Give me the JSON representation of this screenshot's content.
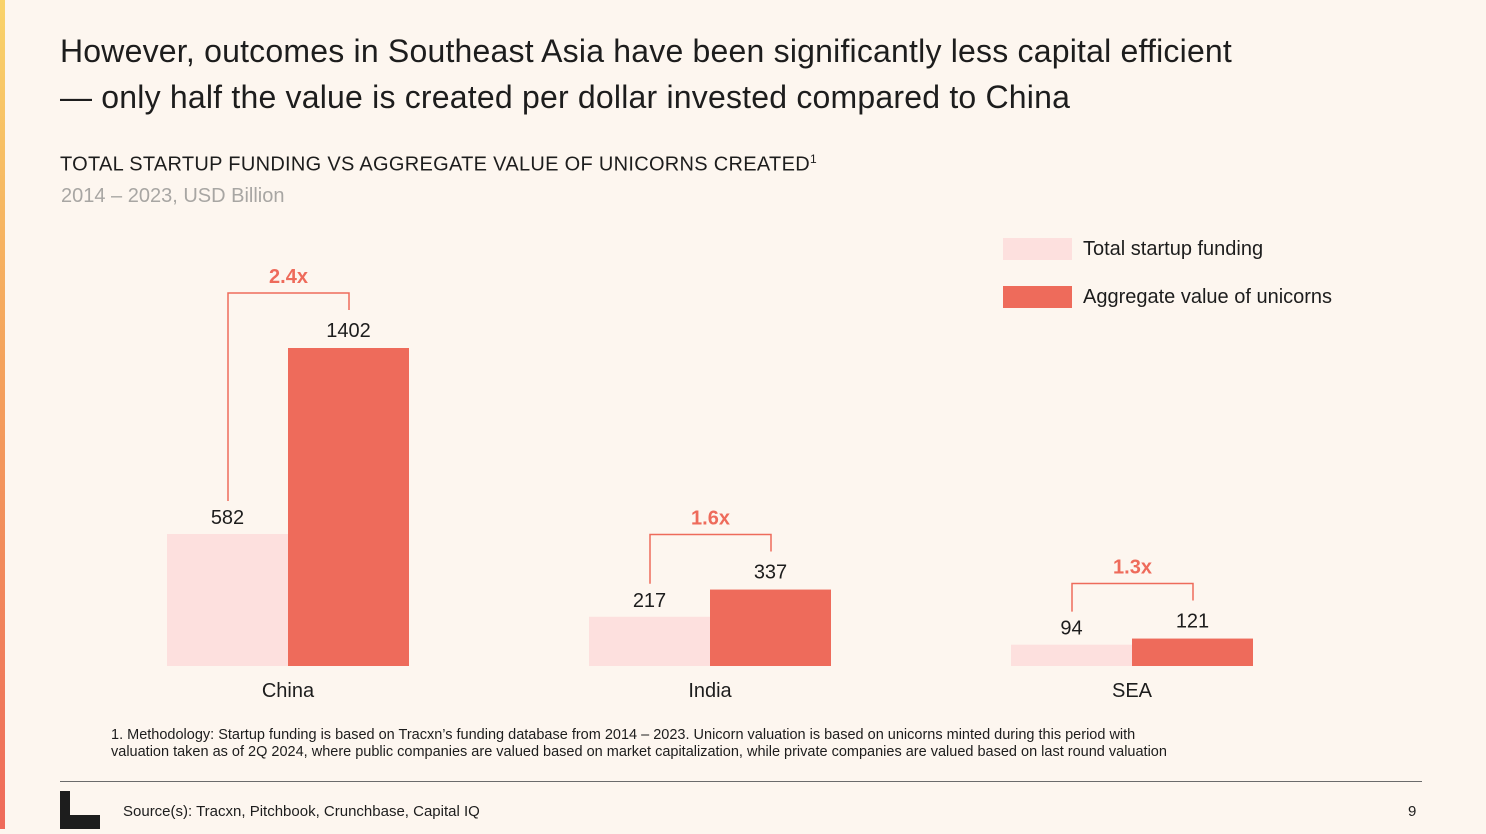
{
  "headline": {
    "line1": "However, outcomes in Southeast Asia have been significantly less capital efficient",
    "line2": "— only half the value is created per dollar invested compared to China"
  },
  "colors": {
    "funding": "#fde0de",
    "unicorns": "#ee6b5b",
    "multiplier": "#ee6b5b",
    "background": "#fdf6ef"
  },
  "chart_data": {
    "type": "bar",
    "title": "TOTAL STARTUP FUNDING VS AGGREGATE VALUE OF UNICORNS CREATED",
    "title_superscript": "1",
    "subtitle": "2014 – 2023, USD Billion",
    "categories": [
      "China",
      "India",
      "SEA"
    ],
    "series": [
      {
        "name": "Total startup funding",
        "values": [
          582,
          217,
          94
        ],
        "color": "#fde0de"
      },
      {
        "name": "Aggregate value of unicorns",
        "values": [
          1402,
          337,
          121
        ],
        "color": "#ee6b5b"
      }
    ],
    "multipliers": [
      "2.4x",
      "1.6x",
      "1.3x"
    ],
    "ylim": [
      0,
      1402
    ],
    "grid": false,
    "legend": "top-right"
  },
  "footnote": {
    "line1": "1. Methodology: Startup funding is based on Tracxn’s funding database from 2014 – 2023. Unicorn valuation is based on unicorns minted during this period with",
    "line2": "valuation taken as of 2Q 2024, where public companies are valued based on market capitalization, while private companies are valued based on last round valuation"
  },
  "source": "Source(s): Tracxn, Pitchbook, Crunchbase, Capital IQ",
  "page_number": "9"
}
